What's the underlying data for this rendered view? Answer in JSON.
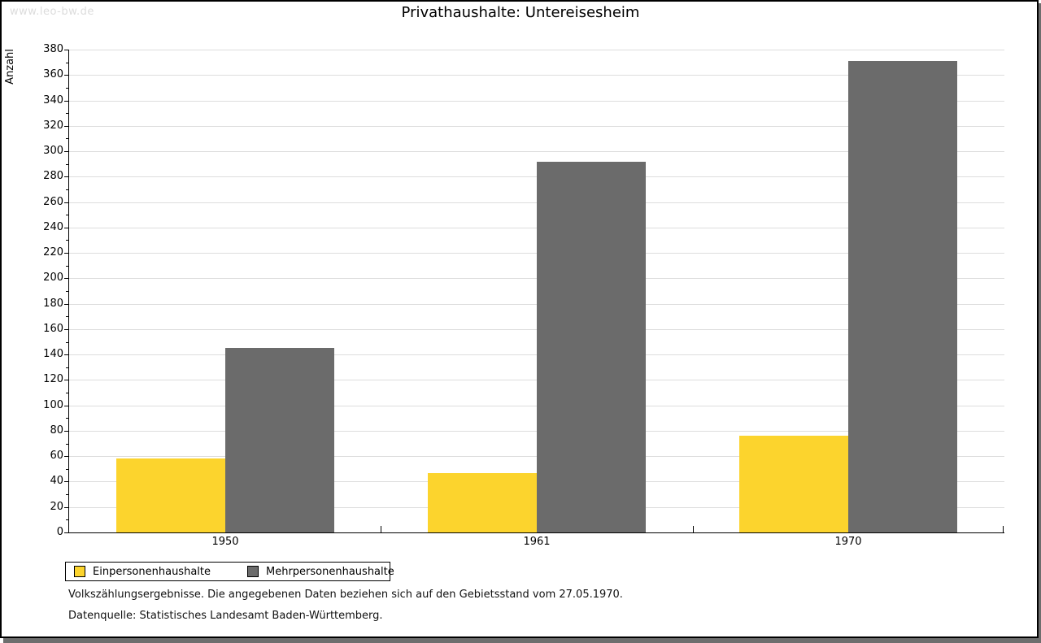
{
  "watermark": "www.leo-bw.de",
  "header": {
    "title": "Privathaushalte: Untereisesheim"
  },
  "chart_data": {
    "type": "bar",
    "title": "Privathaushalte: Untereisesheim",
    "xlabel": "",
    "ylabel": "Anzahl",
    "categories": [
      "1950",
      "1961",
      "1970"
    ],
    "series": [
      {
        "name": "Einpersonenhaushalte",
        "color": "#fcd42d",
        "values": [
          58,
          47,
          76
        ]
      },
      {
        "name": "Mehrpersonenhaushalte",
        "color": "#6b6b6b",
        "values": [
          145,
          292,
          371
        ]
      }
    ],
    "ylim": [
      0,
      380
    ],
    "ytick_step": 20,
    "ytick_minor_step": 10,
    "grid": true,
    "gridline_color": "#dddddd",
    "legend_position": "bottom-left"
  },
  "legend": {
    "items": [
      {
        "label": "Einpersonenhaushalte",
        "color": "#fcd42d"
      },
      {
        "label": "Mehrpersonenhaushalte",
        "color": "#6b6b6b"
      }
    ]
  },
  "footnotes": {
    "line1": "Volkszählungsergebnisse. Die angegebenen Daten beziehen sich auf den Gebietsstand vom 27.05.1970.",
    "line2": "Datenquelle: Statistisches Landesamt Baden-Württemberg."
  },
  "colors": {
    "series1": "#fcd42d",
    "series2": "#6b6b6b",
    "gridline": "#dddddd",
    "axis": "#000000",
    "watermark": "#dcdcdc",
    "frame_shadow": "#6e6e6e",
    "background": "#ffffff"
  }
}
